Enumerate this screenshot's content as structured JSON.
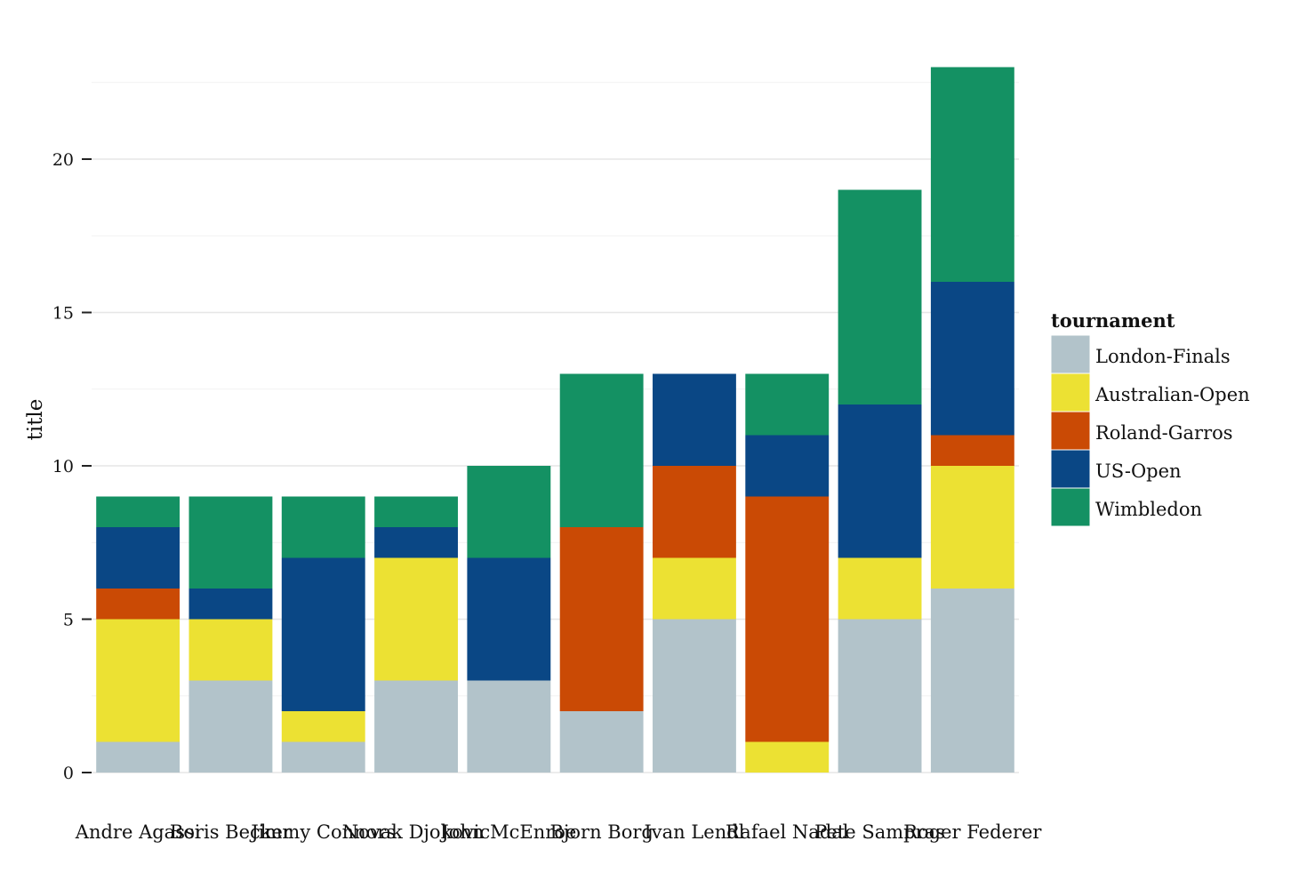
{
  "chart_data": {
    "type": "bar",
    "stacked": true,
    "categories": [
      "Andre Agassi",
      "Boris Becker",
      "Jimmy Connors",
      "Novak Djokovic",
      "John McEnroe",
      "Bjorn Borg",
      "Ivan Lendl",
      "Rafael Nadal",
      "Pete Sampras",
      "Roger Federer"
    ],
    "series": [
      {
        "name": "London-Finals",
        "color": "#b2c3ca",
        "values": [
          1,
          3,
          1,
          3,
          3,
          2,
          5,
          0,
          5,
          6
        ]
      },
      {
        "name": "Australian-Open",
        "color": "#ece133",
        "values": [
          4,
          2,
          1,
          4,
          0,
          0,
          2,
          1,
          2,
          4
        ]
      },
      {
        "name": "Roland-Garros",
        "color": "#ca4a05",
        "values": [
          1,
          0,
          0,
          0,
          0,
          6,
          3,
          8,
          0,
          1
        ]
      },
      {
        "name": "US-Open",
        "color": "#0a4785",
        "values": [
          2,
          1,
          5,
          1,
          4,
          0,
          3,
          2,
          5,
          5
        ]
      },
      {
        "name": "Wimbledon",
        "color": "#149163",
        "values": [
          1,
          3,
          2,
          1,
          3,
          5,
          0,
          2,
          7,
          7
        ]
      }
    ],
    "xlabel": "",
    "ylabel": "title",
    "ylim": [
      0,
      23
    ],
    "yticks": [
      0,
      5,
      10,
      15,
      20
    ],
    "legend_title": "tournament",
    "legend_position": "right",
    "grid": true
  }
}
